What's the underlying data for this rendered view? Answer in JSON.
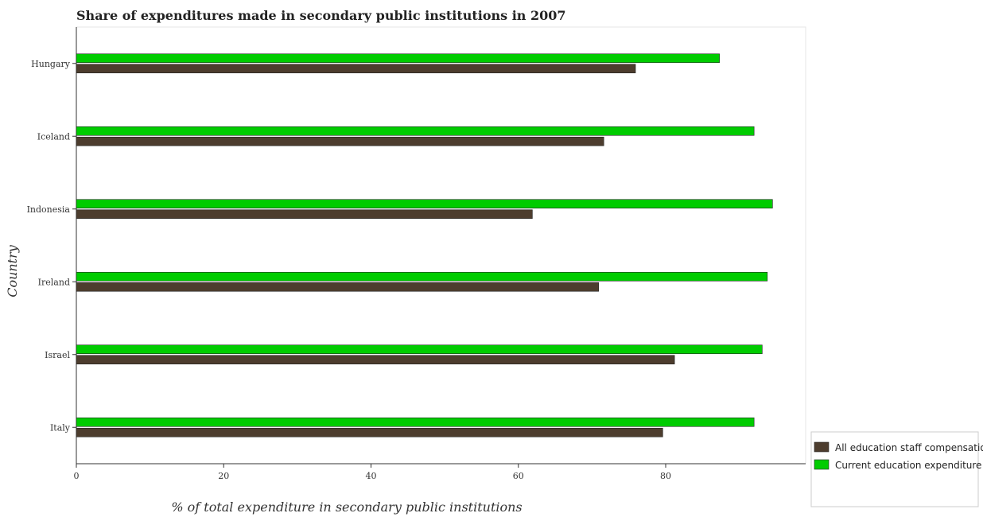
{
  "chart_data": {
    "type": "bar",
    "orientation": "horizontal",
    "title": "Share of expenditures made in secondary public institutions in 2007",
    "xlabel": "% of total expenditure in secondary public institutions",
    "ylabel": "Country",
    "categories": [
      "Hungary",
      "Iceland",
      "Indonesia",
      "Ireland",
      "Israel",
      "Italy"
    ],
    "series": [
      {
        "name": "All education staff compensation",
        "color": "#4d3d2e",
        "values": [
          75.9,
          71.6,
          61.9,
          70.9,
          81.2,
          79.6
        ]
      },
      {
        "name": "Current education expenditure",
        "color": "#00cc00",
        "values": [
          87.3,
          92.0,
          94.5,
          93.8,
          93.1,
          92.0
        ]
      }
    ],
    "xlim": [
      0,
      99
    ],
    "xticks": [
      0,
      20,
      40,
      60,
      80
    ],
    "grid": false,
    "legend_position": "bottom-right"
  }
}
